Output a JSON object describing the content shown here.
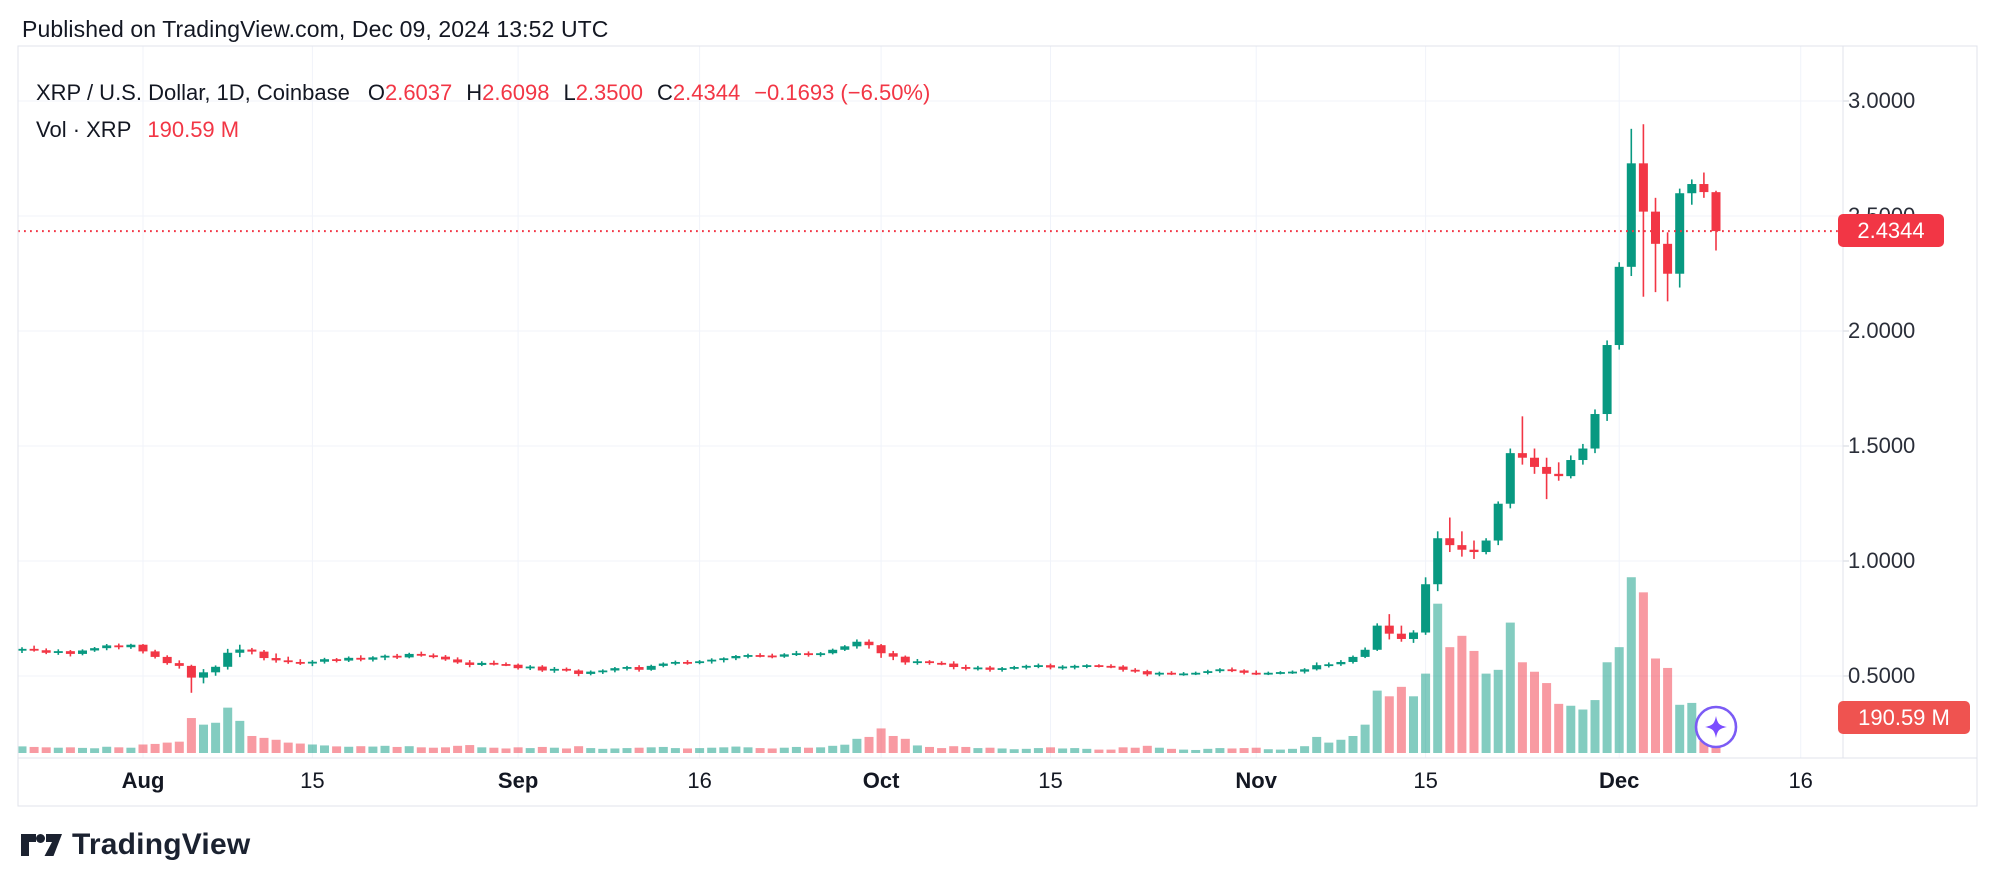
{
  "page": {
    "published": "Published on TradingView.com, Dec 09, 2024 13:52 UTC",
    "brand": "TradingView"
  },
  "legend": {
    "symbol": "XRP / U.S. Dollar, 1D, Coinbase",
    "o_label": "O",
    "o_value": "2.6037",
    "h_label": "H",
    "h_value": "2.6098",
    "l_label": "L",
    "l_value": "2.3500",
    "c_label": "C",
    "c_value": "2.4344",
    "change": "−0.1693 (−6.50%)",
    "vol_label": "Vol · XRP",
    "vol_value": "190.59 M"
  },
  "price_axis": {
    "last_price_label": "2.4344",
    "last_volume_label": "190.59 M"
  },
  "colors": {
    "up": "#089981",
    "down": "#f23645",
    "vol_up": "rgba(8,153,129,0.5)",
    "vol_down": "rgba(242,54,69,0.5)",
    "grid": "#f0f3fa",
    "border": "#e0e3eb",
    "axis_tick": "#d1d4dc",
    "text": "#131722",
    "price_badge_bg": "#f23645",
    "vol_badge_bg": "#ef5350",
    "badge_text": "#ffffff",
    "dotted_line": "#f23645",
    "sparkle_ring": "#7b5bf5",
    "sparkle_star": "#7c4dff",
    "logo": "#1b2230"
  },
  "chart_data": {
    "type": "candlestick",
    "title": "XRP / U.S. Dollar",
    "interval": "1D",
    "exchange": "Coinbase",
    "start_date": "2024-07-22",
    "end_date": "2024-12-09",
    "last": {
      "open": 2.6037,
      "high": 2.6098,
      "low": 2.35,
      "close": 2.4344,
      "change": -0.1693,
      "change_pct": -6.5,
      "volume_millions": 190.59
    },
    "y_axis": {
      "ticks": [
        3.0,
        2.5,
        2.0,
        1.5,
        1.0,
        0.5
      ],
      "decimals": 4,
      "range_visible": [
        0.35,
        3.05
      ]
    },
    "x_ticks": [
      {
        "label": "Aug",
        "index": 10,
        "major": true
      },
      {
        "label": "15",
        "index": 24,
        "major": false
      },
      {
        "label": "Sep",
        "index": 41,
        "major": true
      },
      {
        "label": "16",
        "index": 56,
        "major": false
      },
      {
        "label": "Oct",
        "index": 71,
        "major": true
      },
      {
        "label": "15",
        "index": 85,
        "major": false
      },
      {
        "label": "Nov",
        "index": 102,
        "major": true
      },
      {
        "label": "15",
        "index": 116,
        "major": false
      },
      {
        "label": "Dec",
        "index": 132,
        "major": true
      },
      {
        "label": "16",
        "index": 147,
        "major": false
      }
    ],
    "ohlcv_daily": [
      [
        0.61,
        0.625,
        0.6,
        0.618,
        35
      ],
      [
        0.618,
        0.632,
        0.606,
        0.612,
        32
      ],
      [
        0.612,
        0.62,
        0.595,
        0.601,
        30
      ],
      [
        0.601,
        0.616,
        0.592,
        0.608,
        28
      ],
      [
        0.608,
        0.613,
        0.585,
        0.596,
        30
      ],
      [
        0.596,
        0.616,
        0.59,
        0.611,
        27
      ],
      [
        0.611,
        0.626,
        0.605,
        0.621,
        25
      ],
      [
        0.621,
        0.639,
        0.612,
        0.633,
        33
      ],
      [
        0.633,
        0.641,
        0.616,
        0.625,
        30
      ],
      [
        0.625,
        0.64,
        0.618,
        0.636,
        28
      ],
      [
        0.636,
        0.639,
        0.598,
        0.607,
        45
      ],
      [
        0.607,
        0.614,
        0.576,
        0.583,
        48
      ],
      [
        0.583,
        0.59,
        0.549,
        0.556,
        55
      ],
      [
        0.556,
        0.568,
        0.532,
        0.544,
        60
      ],
      [
        0.544,
        0.549,
        0.427,
        0.493,
        185
      ],
      [
        0.493,
        0.53,
        0.468,
        0.516,
        150
      ],
      [
        0.516,
        0.546,
        0.501,
        0.54,
        160
      ],
      [
        0.54,
        0.618,
        0.528,
        0.601,
        240
      ],
      [
        0.601,
        0.636,
        0.582,
        0.615,
        170
      ],
      [
        0.615,
        0.622,
        0.594,
        0.606,
        90
      ],
      [
        0.606,
        0.613,
        0.568,
        0.578,
        80
      ],
      [
        0.578,
        0.598,
        0.558,
        0.568,
        70
      ],
      [
        0.568,
        0.584,
        0.553,
        0.561,
        55
      ],
      [
        0.561,
        0.573,
        0.548,
        0.556,
        50
      ],
      [
        0.556,
        0.569,
        0.543,
        0.562,
        45
      ],
      [
        0.562,
        0.579,
        0.554,
        0.573,
        40
      ],
      [
        0.573,
        0.578,
        0.559,
        0.567,
        35
      ],
      [
        0.567,
        0.585,
        0.561,
        0.579,
        33
      ],
      [
        0.579,
        0.59,
        0.564,
        0.571,
        36
      ],
      [
        0.571,
        0.586,
        0.563,
        0.581,
        34
      ],
      [
        0.581,
        0.593,
        0.569,
        0.588,
        38
      ],
      [
        0.588,
        0.596,
        0.574,
        0.581,
        32
      ],
      [
        0.581,
        0.601,
        0.577,
        0.596,
        36
      ],
      [
        0.596,
        0.606,
        0.584,
        0.59,
        30
      ],
      [
        0.59,
        0.598,
        0.577,
        0.584,
        28
      ],
      [
        0.584,
        0.591,
        0.566,
        0.572,
        30
      ],
      [
        0.572,
        0.581,
        0.553,
        0.559,
        38
      ],
      [
        0.559,
        0.569,
        0.538,
        0.548,
        42
      ],
      [
        0.548,
        0.564,
        0.543,
        0.557,
        30
      ],
      [
        0.557,
        0.567,
        0.546,
        0.552,
        28
      ],
      [
        0.552,
        0.559,
        0.543,
        0.549,
        24
      ],
      [
        0.549,
        0.554,
        0.528,
        0.534,
        30
      ],
      [
        0.534,
        0.547,
        0.526,
        0.541,
        26
      ],
      [
        0.541,
        0.547,
        0.518,
        0.524,
        32
      ],
      [
        0.524,
        0.539,
        0.514,
        0.531,
        28
      ],
      [
        0.531,
        0.537,
        0.519,
        0.524,
        24
      ],
      [
        0.524,
        0.529,
        0.499,
        0.509,
        36
      ],
      [
        0.509,
        0.524,
        0.503,
        0.519,
        26
      ],
      [
        0.519,
        0.529,
        0.509,
        0.524,
        22
      ],
      [
        0.524,
        0.539,
        0.516,
        0.534,
        24
      ],
      [
        0.534,
        0.544,
        0.524,
        0.539,
        26
      ],
      [
        0.539,
        0.547,
        0.519,
        0.527,
        28
      ],
      [
        0.527,
        0.549,
        0.523,
        0.544,
        30
      ],
      [
        0.544,
        0.559,
        0.538,
        0.554,
        32
      ],
      [
        0.554,
        0.567,
        0.547,
        0.561,
        26
      ],
      [
        0.561,
        0.569,
        0.549,
        0.557,
        24
      ],
      [
        0.557,
        0.569,
        0.551,
        0.564,
        26
      ],
      [
        0.564,
        0.577,
        0.554,
        0.571,
        28
      ],
      [
        0.571,
        0.581,
        0.559,
        0.577,
        30
      ],
      [
        0.577,
        0.591,
        0.569,
        0.587,
        34
      ],
      [
        0.587,
        0.597,
        0.577,
        0.591,
        30
      ],
      [
        0.591,
        0.599,
        0.581,
        0.589,
        26
      ],
      [
        0.589,
        0.597,
        0.577,
        0.584,
        24
      ],
      [
        0.584,
        0.599,
        0.579,
        0.594,
        28
      ],
      [
        0.594,
        0.609,
        0.587,
        0.599,
        32
      ],
      [
        0.599,
        0.607,
        0.584,
        0.591,
        28
      ],
      [
        0.591,
        0.604,
        0.584,
        0.599,
        30
      ],
      [
        0.599,
        0.619,
        0.594,
        0.614,
        38
      ],
      [
        0.614,
        0.634,
        0.609,
        0.629,
        44
      ],
      [
        0.629,
        0.659,
        0.619,
        0.649,
        75
      ],
      [
        0.649,
        0.659,
        0.619,
        0.634,
        85
      ],
      [
        0.634,
        0.639,
        0.579,
        0.599,
        130
      ],
      [
        0.599,
        0.609,
        0.569,
        0.584,
        90
      ],
      [
        0.584,
        0.589,
        0.549,
        0.559,
        75
      ],
      [
        0.559,
        0.574,
        0.549,
        0.564,
        40
      ],
      [
        0.564,
        0.569,
        0.549,
        0.557,
        32
      ],
      [
        0.557,
        0.564,
        0.547,
        0.554,
        26
      ],
      [
        0.554,
        0.564,
        0.529,
        0.539,
        36
      ],
      [
        0.539,
        0.549,
        0.524,
        0.531,
        32
      ],
      [
        0.531,
        0.544,
        0.524,
        0.537,
        26
      ],
      [
        0.537,
        0.544,
        0.519,
        0.527,
        28
      ],
      [
        0.527,
        0.539,
        0.519,
        0.534,
        24
      ],
      [
        0.534,
        0.544,
        0.527,
        0.539,
        20
      ],
      [
        0.539,
        0.549,
        0.529,
        0.544,
        22
      ],
      [
        0.544,
        0.554,
        0.534,
        0.547,
        26
      ],
      [
        0.547,
        0.554,
        0.529,
        0.537,
        30
      ],
      [
        0.537,
        0.547,
        0.527,
        0.541,
        24
      ],
      [
        0.541,
        0.549,
        0.529,
        0.544,
        26
      ],
      [
        0.544,
        0.551,
        0.534,
        0.547,
        22
      ],
      [
        0.547,
        0.551,
        0.537,
        0.544,
        18
      ],
      [
        0.544,
        0.551,
        0.534,
        0.541,
        18
      ],
      [
        0.541,
        0.547,
        0.519,
        0.527,
        30
      ],
      [
        0.527,
        0.534,
        0.514,
        0.521,
        28
      ],
      [
        0.521,
        0.527,
        0.499,
        0.507,
        38
      ],
      [
        0.507,
        0.519,
        0.499,
        0.514,
        28
      ],
      [
        0.514,
        0.521,
        0.504,
        0.509,
        22
      ],
      [
        0.509,
        0.517,
        0.501,
        0.511,
        18
      ],
      [
        0.511,
        0.519,
        0.504,
        0.514,
        16
      ],
      [
        0.514,
        0.527,
        0.507,
        0.521,
        22
      ],
      [
        0.521,
        0.534,
        0.514,
        0.529,
        26
      ],
      [
        0.529,
        0.537,
        0.517,
        0.524,
        24
      ],
      [
        0.524,
        0.529,
        0.507,
        0.514,
        26
      ],
      [
        0.514,
        0.524,
        0.504,
        0.511,
        28
      ],
      [
        0.511,
        0.519,
        0.504,
        0.514,
        20
      ],
      [
        0.514,
        0.521,
        0.507,
        0.517,
        18
      ],
      [
        0.517,
        0.524,
        0.509,
        0.519,
        22
      ],
      [
        0.519,
        0.534,
        0.511,
        0.529,
        36
      ],
      [
        0.529,
        0.559,
        0.524,
        0.547,
        85
      ],
      [
        0.547,
        0.559,
        0.537,
        0.551,
        55
      ],
      [
        0.551,
        0.569,
        0.544,
        0.561,
        70
      ],
      [
        0.561,
        0.589,
        0.554,
        0.583,
        90
      ],
      [
        0.583,
        0.624,
        0.578,
        0.614,
        150
      ],
      [
        0.614,
        0.729,
        0.609,
        0.719,
        330
      ],
      [
        0.719,
        0.769,
        0.659,
        0.684,
        300
      ],
      [
        0.684,
        0.719,
        0.649,
        0.661,
        350
      ],
      [
        0.661,
        0.699,
        0.644,
        0.689,
        300
      ],
      [
        0.689,
        0.929,
        0.679,
        0.899,
        420
      ],
      [
        0.899,
        1.129,
        0.869,
        1.099,
        790
      ],
      [
        1.099,
        1.189,
        1.039,
        1.069,
        560
      ],
      [
        1.069,
        1.129,
        1.019,
        1.049,
        620
      ],
      [
        1.049,
        1.089,
        1.009,
        1.039,
        540
      ],
      [
        1.039,
        1.099,
        1.029,
        1.089,
        420
      ],
      [
        1.089,
        1.259,
        1.069,
        1.249,
        440
      ],
      [
        1.249,
        1.489,
        1.229,
        1.469,
        690
      ],
      [
        1.469,
        1.629,
        1.419,
        1.449,
        480
      ],
      [
        1.449,
        1.489,
        1.379,
        1.409,
        430
      ],
      [
        1.409,
        1.449,
        1.269,
        1.379,
        370
      ],
      [
        1.379,
        1.429,
        1.349,
        1.369,
        260
      ],
      [
        1.369,
        1.459,
        1.359,
        1.439,
        250
      ],
      [
        1.439,
        1.509,
        1.419,
        1.489,
        230
      ],
      [
        1.489,
        1.659,
        1.469,
        1.639,
        280
      ],
      [
        1.639,
        1.959,
        1.609,
        1.939,
        480
      ],
      [
        1.939,
        2.299,
        1.919,
        2.279,
        560
      ],
      [
        2.279,
        2.879,
        2.239,
        2.729,
        930
      ],
      [
        2.729,
        2.899,
        2.149,
        2.519,
        850
      ],
      [
        2.519,
        2.579,
        2.169,
        2.379,
        500
      ],
      [
        2.379,
        2.429,
        2.129,
        2.249,
        450
      ],
      [
        2.249,
        2.619,
        2.189,
        2.599,
        255
      ],
      [
        2.599,
        2.659,
        2.549,
        2.639,
        265
      ],
      [
        2.639,
        2.689,
        2.579,
        2.604,
        64
      ],
      [
        2.6037,
        2.6098,
        2.35,
        2.4344,
        190.59
      ]
    ]
  }
}
